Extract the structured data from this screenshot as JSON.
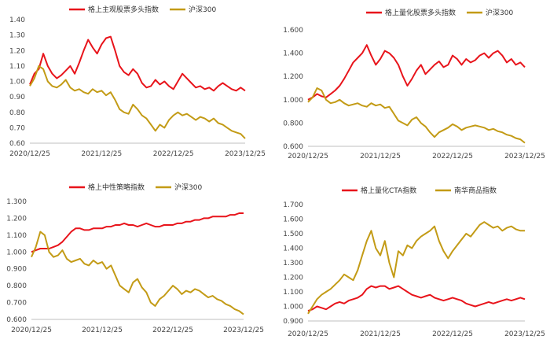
{
  "colors": {
    "red": "#e8141b",
    "gold": "#c39b16",
    "axis": "#bfbfbf"
  },
  "chart_data": [
    {
      "type": "line",
      "title": "",
      "x_ticks": [
        "2020/12/25",
        "2021/12/25",
        "2022/12/25",
        "2023/12/25"
      ],
      "ylim": [
        0.6,
        1.4
      ],
      "y_ticks": [
        "0.60",
        "0.70",
        "0.80",
        "0.90",
        "1.00",
        "1.10",
        "1.20",
        "1.30",
        "1.40"
      ],
      "legend": "top-right",
      "series": [
        {
          "name": "格上主观股票多头指数",
          "color": "red",
          "values": [
            0.98,
            1.05,
            1.08,
            1.18,
            1.1,
            1.05,
            1.02,
            1.04,
            1.07,
            1.1,
            1.05,
            1.12,
            1.2,
            1.27,
            1.22,
            1.18,
            1.24,
            1.28,
            1.29,
            1.2,
            1.1,
            1.06,
            1.04,
            1.08,
            1.05,
            0.99,
            0.96,
            0.97,
            1.01,
            0.98,
            1.0,
            0.97,
            0.95,
            1.0,
            1.05,
            1.02,
            0.99,
            0.96,
            0.97,
            0.95,
            0.96,
            0.94,
            0.97,
            0.99,
            0.97,
            0.95,
            0.94,
            0.96,
            0.94
          ]
        },
        {
          "name": "沪深300",
          "color": "gold",
          "values": [
            0.97,
            1.02,
            1.1,
            1.08,
            1.0,
            0.97,
            0.96,
            0.98,
            1.01,
            0.96,
            0.94,
            0.95,
            0.93,
            0.92,
            0.95,
            0.93,
            0.94,
            0.91,
            0.93,
            0.88,
            0.82,
            0.8,
            0.79,
            0.85,
            0.82,
            0.78,
            0.76,
            0.72,
            0.68,
            0.72,
            0.7,
            0.75,
            0.78,
            0.8,
            0.78,
            0.79,
            0.77,
            0.75,
            0.77,
            0.76,
            0.74,
            0.76,
            0.73,
            0.72,
            0.7,
            0.68,
            0.67,
            0.66,
            0.63
          ]
        }
      ]
    },
    {
      "type": "line",
      "title": "",
      "x_ticks": [
        "2020/12/25",
        "2021/12/25",
        "2022/12/25",
        "2023/12/25"
      ],
      "ylim": [
        0.6,
        1.6
      ],
      "y_ticks": [
        "0.600",
        "0.800",
        "1.000",
        "1.200",
        "1.400",
        "1.600"
      ],
      "legend": "top-right",
      "series": [
        {
          "name": "格上量化股票多头指数",
          "color": "red",
          "values": [
            1.0,
            1.02,
            1.05,
            1.03,
            1.02,
            1.05,
            1.08,
            1.12,
            1.18,
            1.25,
            1.32,
            1.36,
            1.4,
            1.47,
            1.38,
            1.3,
            1.35,
            1.42,
            1.4,
            1.36,
            1.3,
            1.2,
            1.12,
            1.18,
            1.25,
            1.3,
            1.22,
            1.26,
            1.3,
            1.33,
            1.28,
            1.3,
            1.38,
            1.35,
            1.3,
            1.35,
            1.32,
            1.34,
            1.38,
            1.4,
            1.36,
            1.4,
            1.42,
            1.38,
            1.32,
            1.35,
            1.3,
            1.32,
            1.28
          ]
        },
        {
          "name": "沪深300",
          "color": "gold",
          "values": [
            0.98,
            1.02,
            1.1,
            1.08,
            1.0,
            0.97,
            0.98,
            1.0,
            0.97,
            0.95,
            0.96,
            0.97,
            0.95,
            0.94,
            0.97,
            0.95,
            0.96,
            0.93,
            0.94,
            0.88,
            0.82,
            0.8,
            0.78,
            0.83,
            0.85,
            0.8,
            0.77,
            0.72,
            0.68,
            0.72,
            0.74,
            0.76,
            0.79,
            0.77,
            0.74,
            0.76,
            0.77,
            0.78,
            0.77,
            0.76,
            0.74,
            0.75,
            0.73,
            0.72,
            0.7,
            0.69,
            0.67,
            0.66,
            0.63
          ]
        }
      ]
    },
    {
      "type": "line",
      "title": "",
      "x_ticks": [
        "2020/12/25",
        "2021/12/25",
        "2022/12/25",
        "2023/12/25"
      ],
      "ylim": [
        0.6,
        1.3
      ],
      "y_ticks": [
        "0.600",
        "0.700",
        "0.800",
        "0.900",
        "1.000",
        "1.100",
        "1.200",
        "1.300"
      ],
      "legend": "top-right",
      "series": [
        {
          "name": "格上中性策略指数",
          "color": "red",
          "values": [
            1.0,
            1.01,
            1.02,
            1.02,
            1.02,
            1.03,
            1.04,
            1.06,
            1.09,
            1.12,
            1.14,
            1.14,
            1.13,
            1.13,
            1.14,
            1.14,
            1.14,
            1.15,
            1.15,
            1.16,
            1.16,
            1.17,
            1.16,
            1.16,
            1.15,
            1.16,
            1.17,
            1.16,
            1.15,
            1.15,
            1.16,
            1.16,
            1.16,
            1.17,
            1.17,
            1.18,
            1.18,
            1.19,
            1.19,
            1.2,
            1.2,
            1.21,
            1.21,
            1.21,
            1.21,
            1.22,
            1.22,
            1.23,
            1.23
          ]
        },
        {
          "name": "沪深300",
          "color": "gold",
          "values": [
            0.97,
            1.03,
            1.12,
            1.1,
            1.0,
            0.97,
            0.98,
            1.01,
            0.96,
            0.94,
            0.95,
            0.96,
            0.93,
            0.92,
            0.95,
            0.93,
            0.94,
            0.9,
            0.92,
            0.86,
            0.8,
            0.78,
            0.76,
            0.82,
            0.84,
            0.79,
            0.76,
            0.7,
            0.68,
            0.72,
            0.74,
            0.77,
            0.8,
            0.78,
            0.75,
            0.77,
            0.76,
            0.78,
            0.77,
            0.75,
            0.73,
            0.74,
            0.72,
            0.71,
            0.69,
            0.68,
            0.66,
            0.65,
            0.63
          ]
        }
      ]
    },
    {
      "type": "line",
      "title": "",
      "x_ticks": [
        "2020/12/25",
        "2021/12/25",
        "2022/12/25",
        "2023/12/25"
      ],
      "ylim": [
        0.9,
        1.7
      ],
      "y_ticks": [
        "0.900",
        "1.000",
        "1.100",
        "1.200",
        "1.300",
        "1.400",
        "1.500",
        "1.600",
        "1.700"
      ],
      "legend": "top-right",
      "series": [
        {
          "name": "格上量化CTA指数",
          "color": "red",
          "values": [
            0.97,
            0.98,
            1.0,
            0.99,
            0.98,
            1.0,
            1.02,
            1.03,
            1.02,
            1.04,
            1.05,
            1.06,
            1.08,
            1.12,
            1.14,
            1.13,
            1.14,
            1.14,
            1.12,
            1.13,
            1.14,
            1.12,
            1.1,
            1.08,
            1.07,
            1.06,
            1.07,
            1.08,
            1.06,
            1.05,
            1.04,
            1.05,
            1.06,
            1.05,
            1.04,
            1.02,
            1.01,
            1.0,
            1.01,
            1.02,
            1.03,
            1.02,
            1.03,
            1.04,
            1.05,
            1.04,
            1.05,
            1.06,
            1.05
          ]
        },
        {
          "name": "南华商品指数",
          "color": "gold",
          "values": [
            0.95,
            1.0,
            1.05,
            1.08,
            1.1,
            1.12,
            1.15,
            1.18,
            1.22,
            1.2,
            1.18,
            1.25,
            1.35,
            1.45,
            1.52,
            1.4,
            1.35,
            1.45,
            1.3,
            1.2,
            1.38,
            1.35,
            1.42,
            1.4,
            1.45,
            1.48,
            1.5,
            1.52,
            1.55,
            1.45,
            1.38,
            1.33,
            1.38,
            1.42,
            1.46,
            1.5,
            1.48,
            1.52,
            1.56,
            1.58,
            1.56,
            1.54,
            1.55,
            1.52,
            1.54,
            1.55,
            1.53,
            1.52,
            1.52
          ]
        }
      ]
    }
  ]
}
